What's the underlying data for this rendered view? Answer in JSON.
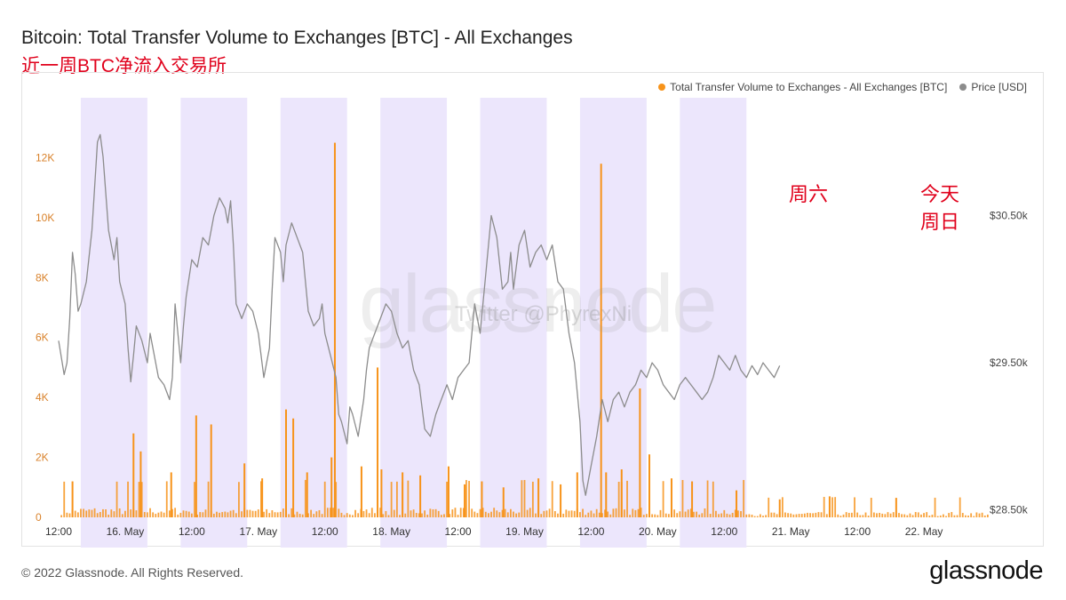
{
  "header": {
    "title": "Bitcoin: Total Transfer Volume to Exchanges [BTC] - All Exchanges",
    "subtitle": "近一周BTC净流入交易所"
  },
  "footer": {
    "copyright": "© 2022 Glassnode. All Rights Reserved.",
    "logo": "glassnode"
  },
  "watermarks": {
    "brand": "glassnode",
    "twitter": "Twitter @PhyrexNi"
  },
  "annotations": {
    "saturday": "周六",
    "today_line1": "今天",
    "today_line2": "周日"
  },
  "colors": {
    "volume": "#f7931a",
    "price": "#8c8c8c",
    "weekend_band": "#ece6fc",
    "annotation": "#e0001b"
  },
  "chart_data": {
    "type": "bar+line",
    "title": "Bitcoin: Total Transfer Volume to Exchanges [BTC] - All Exchanges",
    "legend_position": "top-right",
    "x_range_hours": [
      0,
      168
    ],
    "x_ticks": [
      {
        "label": "12:00",
        "hour": 0
      },
      {
        "label": "16. May",
        "hour": 12
      },
      {
        "label": "12:00",
        "hour": 24
      },
      {
        "label": "17. May",
        "hour": 36
      },
      {
        "label": "12:00",
        "hour": 48
      },
      {
        "label": "18. May",
        "hour": 60
      },
      {
        "label": "12:00",
        "hour": 72
      },
      {
        "label": "19. May",
        "hour": 84
      },
      {
        "label": "12:00",
        "hour": 96
      },
      {
        "label": "20. May",
        "hour": 108
      },
      {
        "label": "12:00",
        "hour": 120
      },
      {
        "label": "21. May",
        "hour": 132
      },
      {
        "label": "12:00",
        "hour": 144
      },
      {
        "label": "22. May",
        "hour": 156
      }
    ],
    "left_axis": {
      "name": "Total Transfer Volume to Exchanges - All Exchanges [BTC]",
      "range": [
        0,
        14000
      ],
      "ticks": [
        {
          "v": 0,
          "label": "0"
        },
        {
          "v": 2000,
          "label": "2K"
        },
        {
          "v": 4000,
          "label": "4K"
        },
        {
          "v": 6000,
          "label": "6K"
        },
        {
          "v": 8000,
          "label": "8K"
        },
        {
          "v": 10000,
          "label": "10K"
        },
        {
          "v": 12000,
          "label": "12K"
        }
      ]
    },
    "right_axis": {
      "name": "Price [USD]",
      "range": [
        28450,
        31300
      ],
      "ticks": [
        {
          "v": 28500,
          "label": "$28.50k"
        },
        {
          "v": 29500,
          "label": "$29.50k"
        },
        {
          "v": 30500,
          "label": "$30.50k"
        }
      ]
    },
    "shaded_bands_hours": [
      [
        4,
        16
      ],
      [
        22,
        34
      ],
      [
        40,
        52
      ],
      [
        58,
        70
      ],
      [
        76,
        88
      ],
      [
        94,
        106
      ],
      [
        112,
        124
      ]
    ],
    "series": [
      {
        "name": "Total Transfer Volume to Exchanges - All Exchanges [BTC]",
        "type": "bar",
        "baseline": 250,
        "spikes": [
          {
            "hour": 2.5,
            "value": 1200
          },
          {
            "hour": 13.5,
            "value": 2800
          },
          {
            "hour": 14.8,
            "value": 2200
          },
          {
            "hour": 20.3,
            "value": 1500
          },
          {
            "hour": 24.8,
            "value": 3400
          },
          {
            "hour": 27.5,
            "value": 3100
          },
          {
            "hour": 33.5,
            "value": 1800
          },
          {
            "hour": 36.7,
            "value": 1300
          },
          {
            "hour": 41.0,
            "value": 3600
          },
          {
            "hour": 42.3,
            "value": 3300
          },
          {
            "hour": 44.8,
            "value": 1500
          },
          {
            "hour": 49.2,
            "value": 2000
          },
          {
            "hour": 49.8,
            "value": 12500
          },
          {
            "hour": 54.6,
            "value": 1700
          },
          {
            "hour": 57.5,
            "value": 5000
          },
          {
            "hour": 58.2,
            "value": 1600
          },
          {
            "hour": 62.0,
            "value": 1500
          },
          {
            "hour": 65.2,
            "value": 1400
          },
          {
            "hour": 70.3,
            "value": 1700
          },
          {
            "hour": 73.2,
            "value": 1100
          },
          {
            "hour": 76.3,
            "value": 1200
          },
          {
            "hour": 80.2,
            "value": 1000
          },
          {
            "hour": 86.5,
            "value": 1300
          },
          {
            "hour": 90.5,
            "value": 1100
          },
          {
            "hour": 93.5,
            "value": 1500
          },
          {
            "hour": 97.8,
            "value": 11800
          },
          {
            "hour": 98.7,
            "value": 1500
          },
          {
            "hour": 101.5,
            "value": 1600
          },
          {
            "hour": 104.8,
            "value": 4300
          },
          {
            "hour": 106.5,
            "value": 2100
          },
          {
            "hour": 110.5,
            "value": 1300
          },
          {
            "hour": 114.2,
            "value": 1200
          },
          {
            "hour": 122.2,
            "value": 900
          },
          {
            "hour": 130.0,
            "value": 600
          },
          {
            "hour": 139.0,
            "value": 700
          },
          {
            "hour": 151.0,
            "value": 650
          }
        ]
      },
      {
        "name": "Price [USD]",
        "type": "line",
        "points": [
          [
            0,
            29650
          ],
          [
            1,
            29420
          ],
          [
            1.5,
            29500
          ],
          [
            2,
            29800
          ],
          [
            2.5,
            30250
          ],
          [
            3,
            30100
          ],
          [
            3.5,
            29850
          ],
          [
            4,
            29900
          ],
          [
            5,
            30050
          ],
          [
            6,
            30400
          ],
          [
            6.5,
            30700
          ],
          [
            7,
            31000
          ],
          [
            7.5,
            31050
          ],
          [
            8,
            30900
          ],
          [
            9,
            30400
          ],
          [
            10,
            30200
          ],
          [
            10.5,
            30350
          ],
          [
            11,
            30050
          ],
          [
            12,
            29900
          ],
          [
            12.5,
            29600
          ],
          [
            13,
            29370
          ],
          [
            13.5,
            29550
          ],
          [
            14,
            29750
          ],
          [
            15,
            29650
          ],
          [
            16,
            29500
          ],
          [
            16.5,
            29700
          ],
          [
            17,
            29600
          ],
          [
            18,
            29400
          ],
          [
            19,
            29350
          ],
          [
            20,
            29250
          ],
          [
            20.5,
            29400
          ],
          [
            21,
            29900
          ],
          [
            22,
            29500
          ],
          [
            22.5,
            29750
          ],
          [
            23,
            29950
          ],
          [
            24,
            30200
          ],
          [
            25,
            30150
          ],
          [
            26,
            30350
          ],
          [
            27,
            30300
          ],
          [
            28,
            30500
          ],
          [
            29,
            30620
          ],
          [
            30,
            30550
          ],
          [
            30.5,
            30450
          ],
          [
            31,
            30600
          ],
          [
            31.5,
            30300
          ],
          [
            32,
            29900
          ],
          [
            33,
            29800
          ],
          [
            34,
            29900
          ],
          [
            35,
            29850
          ],
          [
            36,
            29700
          ],
          [
            37,
            29400
          ],
          [
            38,
            29600
          ],
          [
            38.5,
            30000
          ],
          [
            39,
            30350
          ],
          [
            40,
            30250
          ],
          [
            40.5,
            30050
          ],
          [
            41,
            30300
          ],
          [
            42,
            30450
          ],
          [
            43,
            30350
          ],
          [
            44,
            30250
          ],
          [
            45,
            29850
          ],
          [
            46,
            29750
          ],
          [
            47,
            29800
          ],
          [
            47.5,
            29900
          ],
          [
            48,
            29700
          ],
          [
            49,
            29550
          ],
          [
            50,
            29400
          ],
          [
            50.5,
            29150
          ],
          [
            51,
            29100
          ],
          [
            52,
            28950
          ],
          [
            52.5,
            29200
          ],
          [
            53,
            29150
          ],
          [
            54,
            29000
          ],
          [
            55,
            29250
          ],
          [
            55.5,
            29450
          ],
          [
            56,
            29600
          ],
          [
            57,
            29700
          ],
          [
            58,
            29800
          ],
          [
            59,
            29900
          ],
          [
            60,
            29850
          ],
          [
            61,
            29700
          ],
          [
            62,
            29600
          ],
          [
            63,
            29650
          ],
          [
            64,
            29450
          ],
          [
            65,
            29350
          ],
          [
            66,
            29050
          ],
          [
            67,
            29000
          ],
          [
            68,
            29150
          ],
          [
            69,
            29250
          ],
          [
            70,
            29350
          ],
          [
            71,
            29250
          ],
          [
            72,
            29400
          ],
          [
            73,
            29450
          ],
          [
            74,
            29500
          ],
          [
            75,
            29900
          ],
          [
            76,
            29700
          ],
          [
            77,
            30100
          ],
          [
            78,
            30500
          ],
          [
            79,
            30350
          ],
          [
            80,
            30000
          ],
          [
            81,
            30050
          ],
          [
            81.5,
            30250
          ],
          [
            82,
            30000
          ],
          [
            83,
            30300
          ],
          [
            84,
            30400
          ],
          [
            85,
            30150
          ],
          [
            86,
            30250
          ],
          [
            87,
            30300
          ],
          [
            88,
            30200
          ],
          [
            89,
            30300
          ],
          [
            90,
            30050
          ],
          [
            91,
            30000
          ],
          [
            92,
            29700
          ],
          [
            93,
            29500
          ],
          [
            94,
            29100
          ],
          [
            94.5,
            28700
          ],
          [
            95,
            28600
          ],
          [
            96,
            28800
          ],
          [
            97,
            29000
          ],
          [
            98,
            29250
          ],
          [
            99,
            29100
          ],
          [
            100,
            29250
          ],
          [
            101,
            29300
          ],
          [
            102,
            29200
          ],
          [
            103,
            29300
          ],
          [
            104,
            29350
          ],
          [
            105,
            29450
          ],
          [
            106,
            29400
          ],
          [
            107,
            29500
          ],
          [
            108,
            29450
          ],
          [
            109,
            29350
          ],
          [
            110,
            29300
          ],
          [
            111,
            29250
          ],
          [
            112,
            29350
          ],
          [
            113,
            29400
          ],
          [
            114,
            29350
          ],
          [
            115,
            29300
          ],
          [
            116,
            29250
          ],
          [
            117,
            29300
          ],
          [
            118,
            29400
          ],
          [
            119,
            29550
          ],
          [
            120,
            29500
          ],
          [
            121,
            29450
          ],
          [
            122,
            29550
          ],
          [
            123,
            29450
          ],
          [
            124,
            29400
          ],
          [
            125,
            29480
          ],
          [
            126,
            29420
          ],
          [
            127,
            29500
          ],
          [
            128,
            29450
          ],
          [
            129,
            29400
          ],
          [
            130,
            29480
          ]
        ]
      }
    ]
  }
}
